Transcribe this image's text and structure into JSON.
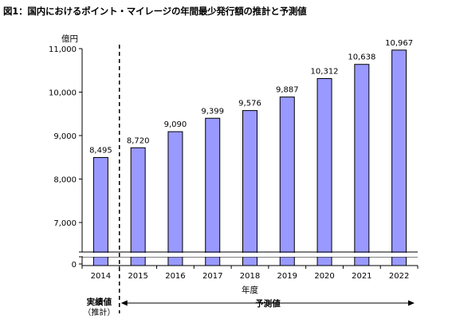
{
  "chart_data": {
    "type": "bar",
    "title": "図1：国内におけるポイント・マイレージの年間最少発行額の推計と予測値",
    "ylabel": "億円",
    "xlabel": "年度",
    "categories": [
      "2014",
      "2015",
      "2016",
      "2017",
      "2018",
      "2019",
      "2020",
      "2021",
      "2022"
    ],
    "values": [
      8495,
      8720,
      9090,
      9399,
      9576,
      9887,
      10312,
      10638,
      10967
    ],
    "data_labels": [
      "8,495",
      "8,720",
      "9,090",
      "9,399",
      "9,576",
      "9,887",
      "10,312",
      "10,638",
      "10,967"
    ],
    "y_ticks": [
      {
        "value": 0,
        "label": "0"
      },
      {
        "value": 7000,
        "label": "7,000"
      },
      {
        "value": 8000,
        "label": "8,000"
      },
      {
        "value": 9000,
        "label": "9,000"
      },
      {
        "value": 10000,
        "label": "10,000"
      },
      {
        "value": 11000,
        "label": "11,000"
      }
    ],
    "ylim": [
      7000,
      11000
    ],
    "axis_break": true,
    "grid": false,
    "bar_color": "#9999ff",
    "bar_edge_color": "#000000",
    "annotations": {
      "estimate_label": "実績値",
      "estimate_sublabel": "（推計）",
      "forecast_label": "予測値"
    }
  }
}
